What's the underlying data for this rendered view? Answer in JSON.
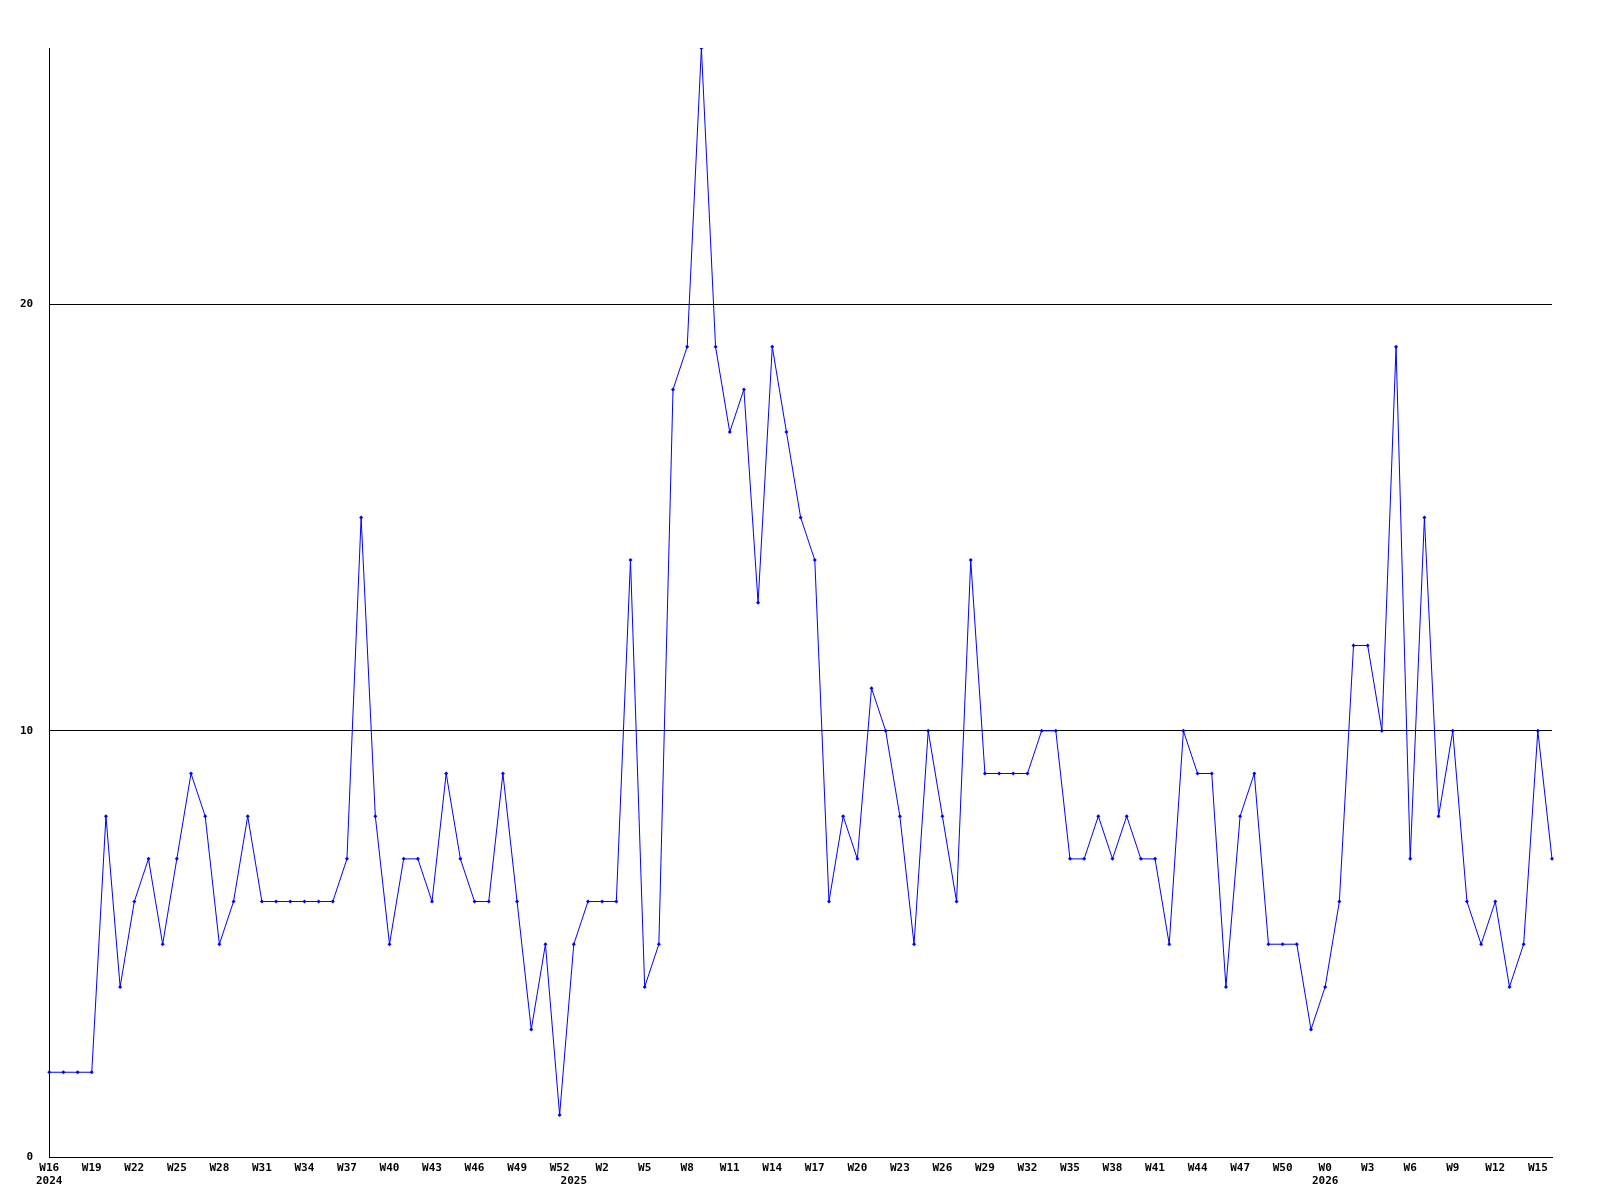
{
  "chart_data": {
    "type": "line",
    "categories": [
      "W16\n2024",
      null,
      null,
      "W19",
      null,
      null,
      "W22",
      null,
      null,
      "W25",
      null,
      null,
      "W28",
      null,
      null,
      "W31",
      null,
      null,
      "W34",
      null,
      null,
      "W37",
      null,
      null,
      "W40",
      null,
      null,
      "W43",
      null,
      null,
      "W46",
      null,
      null,
      "W49",
      null,
      null,
      "W52",
      "\n2025",
      null,
      "W2",
      null,
      null,
      "W5",
      null,
      null,
      "W8",
      null,
      null,
      "W11",
      null,
      null,
      "W14",
      null,
      null,
      "W17",
      null,
      null,
      "W20",
      null,
      null,
      "W23",
      null,
      null,
      "W26",
      null,
      null,
      "W29",
      null,
      null,
      "W32",
      null,
      null,
      "W35",
      null,
      null,
      "W38",
      null,
      null,
      "W41",
      null,
      null,
      "W44",
      null,
      null,
      "W47",
      null,
      null,
      "W50",
      null,
      null,
      "W0\n2026",
      null,
      null,
      "W3",
      null,
      null,
      "W6",
      null,
      null,
      "W9",
      null,
      null,
      "W12",
      null,
      null,
      "W15",
      null
    ],
    "series": [
      {
        "color": "#0000ff",
        "values": [
          2,
          2,
          2,
          2,
          8,
          4,
          6,
          7,
          5,
          7,
          9,
          8,
          5,
          6,
          8,
          6,
          6,
          6,
          6,
          6,
          6,
          7,
          15,
          8,
          5,
          7,
          7,
          6,
          9,
          7,
          6,
          6,
          9,
          6,
          3,
          5,
          1,
          5,
          6,
          6,
          6,
          14,
          4,
          5,
          18,
          19,
          26,
          19,
          17,
          18,
          13,
          19,
          17,
          15,
          14,
          6,
          8,
          7,
          11,
          10,
          8,
          5,
          10,
          8,
          6,
          14,
          9,
          9,
          9,
          9,
          10,
          10,
          7,
          7,
          8,
          7,
          8,
          7,
          7,
          5,
          10,
          9,
          9,
          4,
          8,
          9,
          5,
          5,
          5,
          3,
          4,
          6,
          12,
          12,
          10,
          19,
          7,
          15,
          8,
          10,
          6,
          5,
          6,
          4,
          5,
          10,
          7
        ]
      }
    ],
    "ylim": [
      0,
      26
    ],
    "yticks": [
      0,
      10,
      20
    ],
    "grid": "y",
    "legend": false,
    "marker": "diamond",
    "line_style": "solid"
  }
}
